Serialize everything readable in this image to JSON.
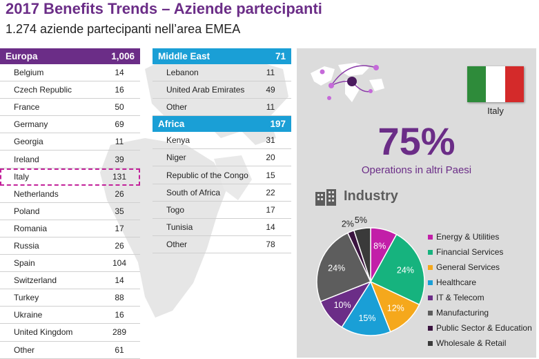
{
  "title": "2017 Benefits Trends – Aziende partecipanti",
  "subtitle": "1.274 aziende partecipanti nell’area EMEA",
  "europe": {
    "name": "Europa",
    "total": "1,006",
    "rows": [
      {
        "name": "Belgium",
        "value": "14"
      },
      {
        "name": "Czech Republic",
        "value": "16"
      },
      {
        "name": "France",
        "value": "50"
      },
      {
        "name": "Germany",
        "value": "69"
      },
      {
        "name": "Georgia",
        "value": "11"
      },
      {
        "name": "Ireland",
        "value": "39"
      },
      {
        "name": "Italy",
        "value": "131"
      },
      {
        "name": "Netherlands",
        "value": "26"
      },
      {
        "name": "Poland",
        "value": "35"
      },
      {
        "name": "Romania",
        "value": "17"
      },
      {
        "name": "Russia",
        "value": "26"
      },
      {
        "name": "Spain",
        "value": "104"
      },
      {
        "name": "Switzerland",
        "value": "14"
      },
      {
        "name": "Turkey",
        "value": "88"
      },
      {
        "name": "Ukraine",
        "value": "16"
      },
      {
        "name": "United Kingdom",
        "value": "289"
      },
      {
        "name": "Other",
        "value": "61"
      }
    ]
  },
  "middle_east": {
    "name": "Middle East",
    "total": "71",
    "rows": [
      {
        "name": "Lebanon",
        "value": "11"
      },
      {
        "name": "United Arab Emirates",
        "value": "49"
      },
      {
        "name": "Other",
        "value": "11"
      }
    ]
  },
  "africa": {
    "name": "Africa",
    "total": "197",
    "rows": [
      {
        "name": "Kenya",
        "value": "31"
      },
      {
        "name": "Niger",
        "value": "20"
      },
      {
        "name": "Republic of the Congo",
        "value": "15"
      },
      {
        "name": "South of Africa",
        "value": "22"
      },
      {
        "name": "Togo",
        "value": "17"
      },
      {
        "name": "Tunisia",
        "value": "14"
      },
      {
        "name": "Other",
        "value": "78"
      }
    ]
  },
  "panel": {
    "flag_label": "Italy",
    "big_pct": "75%",
    "big_caption": "Operations in altri Paesi",
    "industry_title": "Industry"
  },
  "colors": {
    "europe": "#6b2d87",
    "middle_east": "#1a9fd6",
    "africa": "#16a97d",
    "highlight": "#c2219a",
    "flag": [
      "#2e8b3a",
      "#ffffff",
      "#d42a2a"
    ]
  },
  "chart_data": {
    "type": "pie",
    "title": "Industry",
    "series": [
      {
        "name": "Energy & Utilities",
        "value": 8,
        "label": "8%",
        "color": "#c21fa8"
      },
      {
        "name": "Financial Services",
        "value": 24,
        "label": "24%",
        "color": "#16b37e"
      },
      {
        "name": "General Services",
        "value": 12,
        "label": "12%",
        "color": "#f5a81c"
      },
      {
        "name": "Healthcare",
        "value": 15,
        "label": "15%",
        "color": "#1a9fd6"
      },
      {
        "name": "IT & Telecom",
        "value": 10,
        "label": "10%",
        "color": "#6b2d87"
      },
      {
        "name": "Manufacturing",
        "value": 24,
        "label": "24%",
        "color": "#5d5d5d"
      },
      {
        "name": "Public Sector & Education",
        "value": 2,
        "label": "2%",
        "color": "#3b1440"
      },
      {
        "name": "Wholesale & Retail",
        "value": 5,
        "label": "5%",
        "color": "#3a3a3a"
      }
    ],
    "legend_position": "right"
  }
}
